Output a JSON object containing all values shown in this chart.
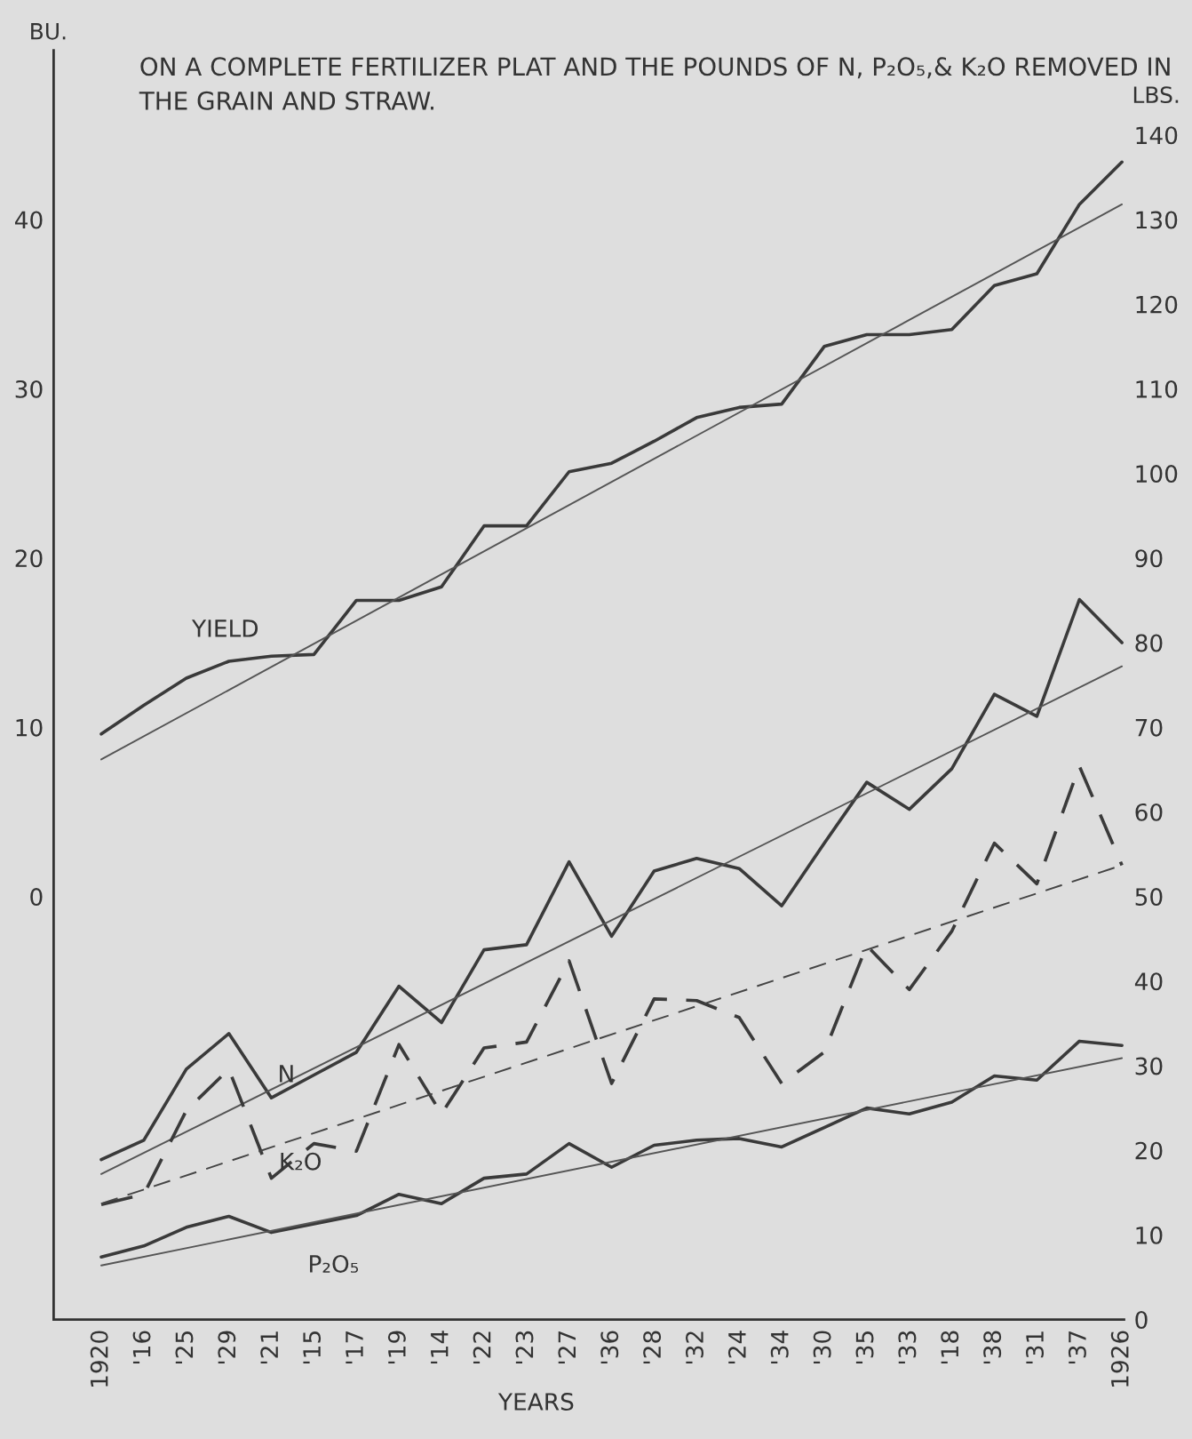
{
  "chart_data": {
    "type": "line",
    "title": "ON A COMPLETE FERTILIZER PLAT AND THE POUNDS OF N, P₂O₅,& K₂O REMOVED IN THE GRAIN AND STRAW.",
    "xlabel": "YEARS",
    "ylabel": "BU.",
    "y2label": "LBS.",
    "categories": [
      "1920",
      "'16",
      "'25",
      "'29",
      "'21",
      "'15",
      "'17",
      "'19",
      "'14",
      "'22",
      "'23",
      "'27",
      "'36",
      "'28",
      "'32",
      "'24",
      "'34",
      "'30",
      "'35",
      "'33",
      "'18",
      "'38",
      "'31",
      "'37",
      "1926"
    ],
    "ylim": [
      -25,
      50
    ],
    "yticks": [
      0,
      10,
      20,
      30,
      40
    ],
    "y2lim": [
      0,
      150
    ],
    "y2ticks": [
      0,
      10,
      20,
      30,
      40,
      50,
      60,
      70,
      80,
      90,
      100,
      110,
      120,
      130,
      140
    ],
    "grid": false,
    "legend": false,
    "marker": "none",
    "series": [
      {
        "name": "YIELD",
        "color": "#3a3a3a",
        "line_style": "solid",
        "values": [
          9.6,
          11.3,
          12.9,
          13.9,
          14.2,
          14.3,
          17.5,
          17.5,
          18.3,
          21.9,
          21.9,
          25.1,
          25.6,
          26.9,
          28.3,
          28.9,
          29.1,
          32.5,
          33.2,
          33.2,
          33.5,
          36.1,
          36.8,
          40.9,
          43.4
        ]
      },
      {
        "color": "#555555",
        "line_style": "solid",
        "values": [
          8.1,
          null,
          null,
          null,
          null,
          null,
          null,
          null,
          null,
          null,
          null,
          null,
          null,
          null,
          null,
          null,
          null,
          null,
          null,
          null,
          null,
          null,
          null,
          null,
          40.9
        ]
      },
      {
        "name": "N",
        "color": "#3a3a3a",
        "line_style": "solid",
        "axis": "y2",
        "values": [
          18.9,
          21.2,
          29.6,
          33.8,
          26.2,
          28.9,
          31.6,
          39.4,
          35.1,
          43.7,
          44.3,
          54.1,
          45.3,
          53.0,
          54.5,
          53.3,
          48.9,
          56.3,
          63.5,
          60.3,
          65.1,
          73.9,
          71.3,
          85.1,
          80.0
        ]
      },
      {
        "color": "#555555",
        "line_style": "solid",
        "axis": "y2",
        "values": [
          17.2,
          null,
          null,
          null,
          null,
          null,
          null,
          null,
          null,
          null,
          null,
          null,
          null,
          null,
          null,
          null,
          null,
          null,
          null,
          null,
          null,
          null,
          null,
          null,
          77.2
        ]
      },
      {
        "name": "K₂O",
        "color": "#3a3a3a",
        "line_style": "dashed",
        "axis": "y2",
        "values": [
          13.6,
          14.8,
          24.7,
          29.6,
          16.7,
          20.8,
          19.9,
          32.5,
          24.3,
          32.1,
          32.8,
          42.4,
          27.9,
          37.9,
          37.7,
          35.7,
          27.9,
          31.6,
          44.2,
          39.0,
          45.9,
          56.3,
          51.5,
          65.4,
          53.7
        ]
      },
      {
        "color": "#444444",
        "line_style": "dashed",
        "axis": "y2",
        "values": [
          13.7,
          null,
          null,
          null,
          null,
          null,
          null,
          null,
          null,
          null,
          null,
          null,
          null,
          null,
          null,
          null,
          null,
          null,
          null,
          null,
          null,
          null,
          null,
          null,
          53.7
        ]
      },
      {
        "name": "P₂O₅",
        "color": "#3a3a3a",
        "line_style": "solid",
        "axis": "y2",
        "values": [
          7.4,
          8.7,
          10.9,
          12.2,
          10.3,
          11.3,
          12.3,
          14.8,
          13.7,
          16.7,
          17.2,
          20.8,
          18.0,
          20.6,
          21.2,
          21.4,
          20.4,
          22.7,
          25.0,
          24.3,
          25.7,
          28.8,
          28.3,
          32.9,
          32.4
        ]
      },
      {
        "color": "#555555",
        "line_style": "solid",
        "axis": "y2",
        "values": [
          6.4,
          null,
          null,
          null,
          null,
          null,
          null,
          null,
          null,
          null,
          null,
          null,
          null,
          null,
          null,
          null,
          null,
          null,
          null,
          null,
          null,
          null,
          null,
          null,
          30.9
        ]
      }
    ]
  }
}
